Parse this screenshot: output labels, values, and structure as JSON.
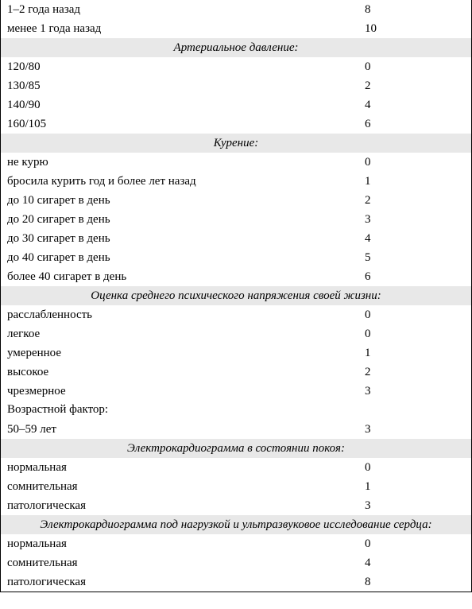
{
  "table": {
    "background_color": "#ffffff",
    "header_background_color": "#e8e8e8",
    "text_color": "#000000",
    "border_color": "#000000",
    "font_family": "Times New Roman",
    "font_size": 15,
    "label_column_width": 450,
    "sections": [
      {
        "type": "rows",
        "rows": [
          {
            "label": "1–2 года назад",
            "value": "8"
          },
          {
            "label": "менее 1 года назад",
            "value": "10"
          }
        ]
      },
      {
        "type": "header",
        "title": "Артериальное давление:"
      },
      {
        "type": "rows",
        "rows": [
          {
            "label": "120/80",
            "value": "0"
          },
          {
            "label": "130/85",
            "value": "2"
          },
          {
            "label": "140/90",
            "value": "4"
          },
          {
            "label": "160/105",
            "value": "6"
          }
        ]
      },
      {
        "type": "header",
        "title": "Курение:"
      },
      {
        "type": "rows",
        "rows": [
          {
            "label": "не курю",
            "value": "0"
          },
          {
            "label": "бросила курить год и более лет назад",
            "value": "1"
          },
          {
            "label": "до 10 сигарет в день",
            "value": "2"
          },
          {
            "label": "до 20 сигарет в день",
            "value": "3"
          },
          {
            "label": "до 30 сигарет в день",
            "value": "4"
          },
          {
            "label": "до 40 сигарет в день",
            "value": "5"
          },
          {
            "label": "более 40 сигарет в день",
            "value": "6"
          }
        ]
      },
      {
        "type": "header",
        "title": "Оценка среднего психического напряжения своей жизни:"
      },
      {
        "type": "rows",
        "rows": [
          {
            "label": "расслабленность",
            "value": "0"
          },
          {
            "label": "легкое",
            "value": "0"
          },
          {
            "label": "умеренное",
            "value": "1"
          },
          {
            "label": "высокое",
            "value": "2"
          },
          {
            "label": "чрезмерное",
            "value": "3"
          }
        ]
      },
      {
        "type": "subheader",
        "title": "Возрастной фактор:"
      },
      {
        "type": "rows",
        "rows": [
          {
            "label": "50–59 лет",
            "value": "3"
          }
        ]
      },
      {
        "type": "header",
        "title": "Электрокардиограмма в состоянии покоя:"
      },
      {
        "type": "rows",
        "rows": [
          {
            "label": "нормальная",
            "value": "0"
          },
          {
            "label": "сомнительная",
            "value": "1"
          },
          {
            "label": "патологическая",
            "value": "3"
          }
        ]
      },
      {
        "type": "header",
        "title": "Электрокардиограмма под нагрузкой и ультразвуковое исследование сердца:"
      },
      {
        "type": "rows",
        "rows": [
          {
            "label": "нормальная",
            "value": "0"
          },
          {
            "label": "сомнительная",
            "value": "4"
          },
          {
            "label": "патологическая",
            "value": "8"
          }
        ]
      }
    ]
  }
}
